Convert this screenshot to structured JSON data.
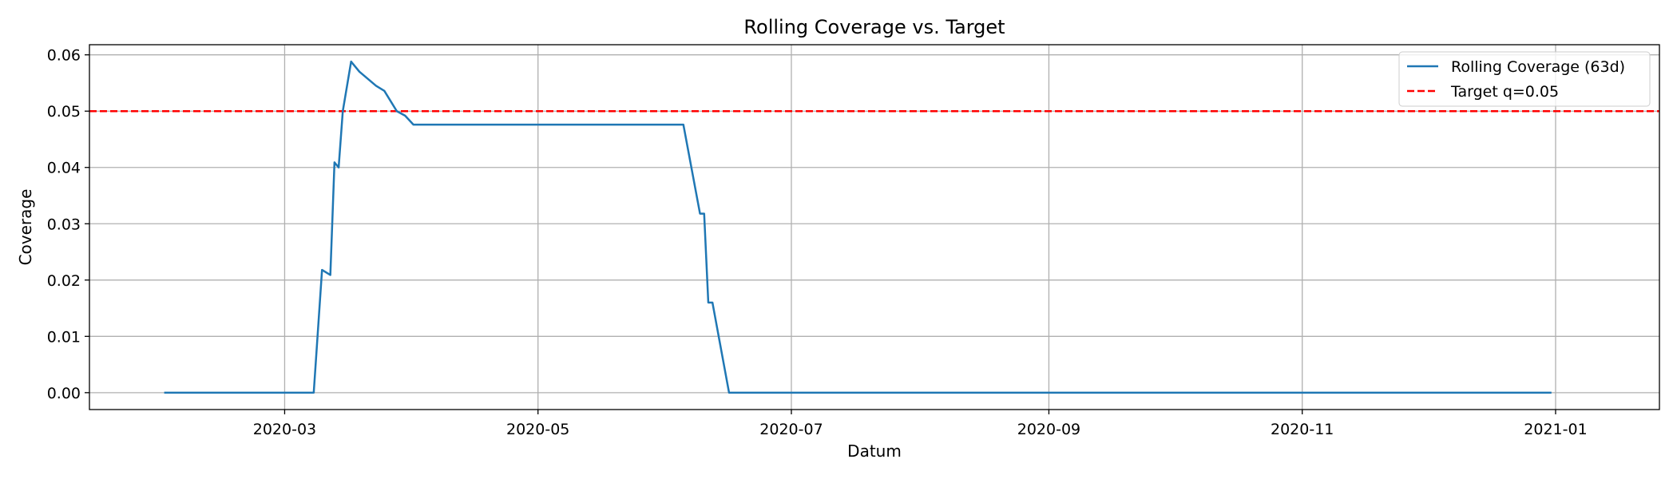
{
  "chart_data": {
    "type": "line",
    "title": "Rolling Coverage vs. Target",
    "xlabel": "Datum",
    "ylabel": "Coverage",
    "x_axis_type": "date",
    "xlim": [
      "2020-01-14",
      "2021-01-26"
    ],
    "ylim": [
      -0.003,
      0.0618
    ],
    "grid": true,
    "legend_position": "top-right",
    "x_ticks": [
      {
        "value": "2020-03-01",
        "label": "2020-03"
      },
      {
        "value": "2020-05-01",
        "label": "2020-05"
      },
      {
        "value": "2020-07-01",
        "label": "2020-07"
      },
      {
        "value": "2020-09-01",
        "label": "2020-09"
      },
      {
        "value": "2020-11-01",
        "label": "2020-11"
      },
      {
        "value": "2021-01-01",
        "label": "2021-01"
      }
    ],
    "y_ticks": [
      {
        "value": 0.0,
        "label": "0.00"
      },
      {
        "value": 0.01,
        "label": "0.01"
      },
      {
        "value": 0.02,
        "label": "0.02"
      },
      {
        "value": 0.03,
        "label": "0.03"
      },
      {
        "value": 0.04,
        "label": "0.04"
      },
      {
        "value": 0.05,
        "label": "0.05"
      },
      {
        "value": 0.06,
        "label": "0.06"
      }
    ],
    "series": [
      {
        "name": "Rolling Coverage (63d)",
        "color": "#1f77b4",
        "style": "solid",
        "x": [
          "2020-02-01",
          "2020-03-08",
          "2020-03-10",
          "2020-03-12",
          "2020-03-13",
          "2020-03-14",
          "2020-03-15",
          "2020-03-17",
          "2020-03-19",
          "2020-03-23",
          "2020-03-25",
          "2020-03-28",
          "2020-03-30",
          "2020-04-01",
          "2020-04-02",
          "2020-06-05",
          "2020-06-09",
          "2020-06-10",
          "2020-06-11",
          "2020-06-12",
          "2020-06-16",
          "2020-12-31"
        ],
        "y": [
          0.0,
          0.0,
          0.0218,
          0.0209,
          0.0409,
          0.04,
          0.05,
          0.0588,
          0.057,
          0.0545,
          0.0536,
          0.05,
          0.0492,
          0.0476,
          0.0476,
          0.0476,
          0.0318,
          0.0318,
          0.016,
          0.016,
          0.0,
          0.0
        ]
      },
      {
        "name": "Target q=0.05",
        "color": "#ff0000",
        "style": "dashed",
        "y_constant": 0.05
      }
    ]
  }
}
